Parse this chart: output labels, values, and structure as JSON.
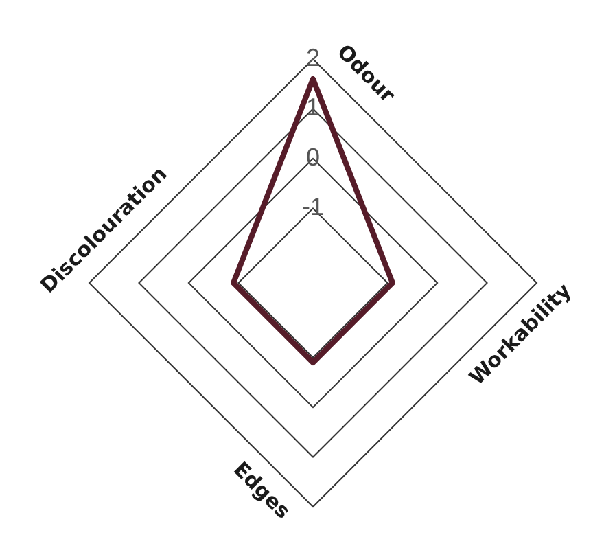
{
  "chart_data": {
    "type": "radar",
    "categories": [
      "Odour",
      "Workability",
      "Edges",
      "Discolouration"
    ],
    "series": [
      {
        "color": "#561c29",
        "values": [
          1.6,
          -0.9,
          -0.9,
          -0.9
        ]
      }
    ],
    "ylim": [
      -2.5,
      2
    ],
    "yticks": [
      -1,
      0,
      1,
      2
    ],
    "grid": true,
    "marker": "none"
  }
}
